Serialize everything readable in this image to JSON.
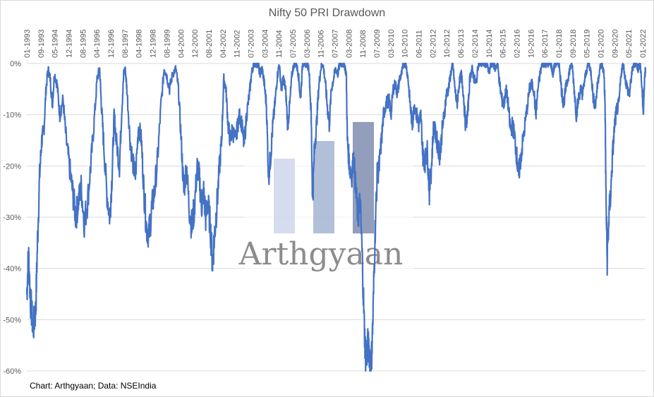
{
  "chart_data": {
    "type": "area",
    "title": "Nifty 50 PRI Drawdown",
    "source_note": "Chart: Arthgyaan; Data: NSEIndia",
    "watermark": "Arthgyaan",
    "ylim": [
      -0.6,
      0
    ],
    "y_ticks": [
      "0%",
      "-10%",
      "-20%",
      "-30%",
      "-40%",
      "-50%",
      "-60%"
    ],
    "x_tick_labels": [
      "01-1993",
      "09-1993",
      "05-1994",
      "12-1994",
      "08-1995",
      "04-1996",
      "12-1996",
      "08-1997",
      "04-1998",
      "12-1998",
      "08-1999",
      "04-2000",
      "12-2000",
      "08-2001",
      "04-2002",
      "11-2002",
      "07-2003",
      "03-2004",
      "11-2004",
      "07-2005",
      "03-2006",
      "11-2006",
      "07-2007",
      "03-2008",
      "11-2008",
      "07-2009",
      "03-2010",
      "10-2010",
      "06-2011",
      "02-2012",
      "10-2012",
      "06-2013",
      "02-2014",
      "10-2014",
      "06-2015",
      "02-2016",
      "10-2016",
      "06-2017",
      "01-2018",
      "09-2018",
      "05-2019",
      "01-2020",
      "09-2020",
      "05-2021",
      "01-2022"
    ],
    "colors": {
      "line": "#4472c4",
      "grid": "#d9d9d9",
      "text": "#595959"
    },
    "series": [
      {
        "values": [
          [
            1993.0,
            -0.45
          ],
          [
            1993.08,
            -0.37
          ],
          [
            1993.17,
            -0.46
          ],
          [
            1993.3,
            -0.52
          ],
          [
            1993.42,
            -0.48
          ],
          [
            1993.5,
            -0.35
          ],
          [
            1993.6,
            -0.22
          ],
          [
            1993.7,
            -0.15
          ],
          [
            1993.8,
            -0.13
          ],
          [
            1993.9,
            -0.05
          ],
          [
            1994.0,
            -0.01
          ],
          [
            1994.1,
            -0.03
          ],
          [
            1994.2,
            -0.08
          ],
          [
            1994.3,
            -0.02
          ],
          [
            1994.42,
            -0.04
          ],
          [
            1994.55,
            -0.1
          ],
          [
            1994.7,
            -0.07
          ],
          [
            1994.85,
            -0.15
          ],
          [
            1995.0,
            -0.2
          ],
          [
            1995.15,
            -0.25
          ],
          [
            1995.3,
            -0.3
          ],
          [
            1995.42,
            -0.27
          ],
          [
            1995.55,
            -0.24
          ],
          [
            1995.7,
            -0.31
          ],
          [
            1995.85,
            -0.27
          ],
          [
            1996.0,
            -0.2
          ],
          [
            1996.15,
            -0.12
          ],
          [
            1996.3,
            -0.03
          ],
          [
            1996.42,
            -0.01
          ],
          [
            1996.5,
            -0.08
          ],
          [
            1996.6,
            -0.15
          ],
          [
            1996.75,
            -0.25
          ],
          [
            1996.9,
            -0.3
          ],
          [
            1997.0,
            -0.22
          ],
          [
            1997.1,
            -0.1
          ],
          [
            1997.2,
            -0.15
          ],
          [
            1997.35,
            -0.2
          ],
          [
            1997.45,
            -0.1
          ],
          [
            1997.55,
            -0.02
          ],
          [
            1997.62,
            -0.01
          ],
          [
            1997.7,
            -0.05
          ],
          [
            1997.85,
            -0.15
          ],
          [
            1998.0,
            -0.2
          ],
          [
            1998.1,
            -0.22
          ],
          [
            1998.25,
            -0.12
          ],
          [
            1998.38,
            -0.15
          ],
          [
            1998.5,
            -0.25
          ],
          [
            1998.62,
            -0.32
          ],
          [
            1998.75,
            -0.33
          ],
          [
            1998.87,
            -0.28
          ],
          [
            1999.0,
            -0.25
          ],
          [
            1999.15,
            -0.18
          ],
          [
            1999.3,
            -0.08
          ],
          [
            1999.45,
            -0.01
          ],
          [
            1999.55,
            -0.02
          ],
          [
            1999.7,
            -0.05
          ],
          [
            1999.85,
            -0.02
          ],
          [
            2000.0,
            -0.01
          ],
          [
            2000.12,
            -0.05
          ],
          [
            2000.25,
            -0.15
          ],
          [
            2000.37,
            -0.25
          ],
          [
            2000.5,
            -0.2
          ],
          [
            2000.62,
            -0.28
          ],
          [
            2000.75,
            -0.32
          ],
          [
            2000.87,
            -0.28
          ],
          [
            2001.0,
            -0.2
          ],
          [
            2001.1,
            -0.22
          ],
          [
            2001.2,
            -0.28
          ],
          [
            2001.3,
            -0.25
          ],
          [
            2001.4,
            -0.3
          ],
          [
            2001.5,
            -0.27
          ],
          [
            2001.62,
            -0.32
          ],
          [
            2001.72,
            -0.39
          ],
          [
            2001.82,
            -0.33
          ],
          [
            2001.92,
            -0.28
          ],
          [
            2002.05,
            -0.2
          ],
          [
            2002.15,
            -0.15
          ],
          [
            2002.25,
            -0.03
          ],
          [
            2002.35,
            -0.05
          ],
          [
            2002.45,
            -0.12
          ],
          [
            2002.55,
            -0.15
          ],
          [
            2002.65,
            -0.13
          ],
          [
            2002.8,
            -0.15
          ],
          [
            2002.9,
            -0.12
          ],
          [
            2003.0,
            -0.1
          ],
          [
            2003.1,
            -0.12
          ],
          [
            2003.2,
            -0.16
          ],
          [
            2003.32,
            -0.1
          ],
          [
            2003.45,
            -0.06
          ],
          [
            2003.55,
            -0.02
          ],
          [
            2003.65,
            0.0
          ],
          [
            2003.75,
            0.0
          ],
          [
            2003.85,
            0.0
          ],
          [
            2003.95,
            -0.02
          ],
          [
            2004.05,
            -0.01
          ],
          [
            2004.15,
            -0.04
          ],
          [
            2004.25,
            -0.08
          ],
          [
            2004.35,
            -0.22
          ],
          [
            2004.45,
            -0.18
          ],
          [
            2004.55,
            -0.12
          ],
          [
            2004.65,
            -0.08
          ],
          [
            2004.75,
            -0.03
          ],
          [
            2004.85,
            0.0
          ],
          [
            2004.95,
            -0.05
          ],
          [
            2005.05,
            -0.03
          ],
          [
            2005.15,
            -0.05
          ],
          [
            2005.25,
            -0.12
          ],
          [
            2005.35,
            -0.08
          ],
          [
            2005.45,
            -0.02
          ],
          [
            2005.55,
            0.0
          ],
          [
            2005.65,
            0.0
          ],
          [
            2005.75,
            -0.02
          ],
          [
            2005.85,
            -0.07
          ],
          [
            2005.95,
            0.0
          ],
          [
            2006.05,
            0.0
          ],
          [
            2006.15,
            0.0
          ],
          [
            2006.25,
            -0.01
          ],
          [
            2006.35,
            -0.1
          ],
          [
            2006.42,
            -0.27
          ],
          [
            2006.5,
            -0.17
          ],
          [
            2006.6,
            -0.12
          ],
          [
            2006.7,
            -0.05
          ],
          [
            2006.8,
            -0.01
          ],
          [
            2006.9,
            0.0
          ],
          [
            2007.0,
            -0.03
          ],
          [
            2007.1,
            -0.08
          ],
          [
            2007.2,
            -0.12
          ],
          [
            2007.3,
            -0.05
          ],
          [
            2007.4,
            -0.03
          ],
          [
            2007.5,
            -0.01
          ],
          [
            2007.6,
            -0.02
          ],
          [
            2007.7,
            0.0
          ],
          [
            2007.8,
            0.0
          ],
          [
            2007.9,
            0.0
          ],
          [
            2008.0,
            -0.02
          ],
          [
            2008.05,
            -0.15
          ],
          [
            2008.15,
            -0.2
          ],
          [
            2008.25,
            -0.22
          ],
          [
            2008.35,
            -0.18
          ],
          [
            2008.45,
            -0.25
          ],
          [
            2008.55,
            -0.3
          ],
          [
            2008.65,
            -0.27
          ],
          [
            2008.75,
            -0.38
          ],
          [
            2008.85,
            -0.52
          ],
          [
            2008.92,
            -0.58
          ],
          [
            2009.0,
            -0.55
          ],
          [
            2009.08,
            -0.56
          ],
          [
            2009.17,
            -0.59
          ],
          [
            2009.25,
            -0.5
          ],
          [
            2009.35,
            -0.33
          ],
          [
            2009.45,
            -0.22
          ],
          [
            2009.55,
            -0.2
          ],
          [
            2009.65,
            -0.15
          ],
          [
            2009.75,
            -0.1
          ],
          [
            2009.85,
            -0.08
          ],
          [
            2010.0,
            -0.07
          ],
          [
            2010.1,
            -0.1
          ],
          [
            2010.2,
            -0.05
          ],
          [
            2010.3,
            -0.04
          ],
          [
            2010.4,
            -0.06
          ],
          [
            2010.5,
            -0.03
          ],
          [
            2010.6,
            -0.02
          ],
          [
            2010.7,
            0.0
          ],
          [
            2010.8,
            0.0
          ],
          [
            2010.9,
            -0.03
          ],
          [
            2011.0,
            -0.08
          ],
          [
            2011.1,
            -0.12
          ],
          [
            2011.2,
            -0.08
          ],
          [
            2011.3,
            -0.1
          ],
          [
            2011.4,
            -0.12
          ],
          [
            2011.5,
            -0.1
          ],
          [
            2011.6,
            -0.18
          ],
          [
            2011.7,
            -0.19
          ],
          [
            2011.8,
            -0.17
          ],
          [
            2011.9,
            -0.25
          ],
          [
            2012.0,
            -0.2
          ],
          [
            2012.1,
            -0.12
          ],
          [
            2012.2,
            -0.14
          ],
          [
            2012.3,
            -0.16
          ],
          [
            2012.4,
            -0.18
          ],
          [
            2012.5,
            -0.13
          ],
          [
            2012.6,
            -0.1
          ],
          [
            2012.7,
            -0.06
          ],
          [
            2012.8,
            -0.05
          ],
          [
            2012.9,
            -0.02
          ],
          [
            2013.0,
            0.0
          ],
          [
            2013.1,
            -0.05
          ],
          [
            2013.2,
            -0.08
          ],
          [
            2013.3,
            -0.04
          ],
          [
            2013.4,
            -0.02
          ],
          [
            2013.5,
            -0.06
          ],
          [
            2013.6,
            -0.12
          ],
          [
            2013.7,
            -0.1
          ],
          [
            2013.8,
            -0.03
          ],
          [
            2013.9,
            -0.01
          ],
          [
            2014.0,
            -0.03
          ],
          [
            2014.1,
            -0.04
          ],
          [
            2014.2,
            0.0
          ],
          [
            2014.3,
            0.0
          ],
          [
            2014.4,
            0.0
          ],
          [
            2014.5,
            0.0
          ],
          [
            2014.6,
            0.0
          ],
          [
            2014.7,
            -0.02
          ],
          [
            2014.8,
            0.0
          ],
          [
            2014.9,
            0.0
          ],
          [
            2015.0,
            -0.01
          ],
          [
            2015.1,
            0.0
          ],
          [
            2015.2,
            -0.04
          ],
          [
            2015.3,
            -0.07
          ],
          [
            2015.4,
            -0.08
          ],
          [
            2015.5,
            -0.05
          ],
          [
            2015.6,
            -0.08
          ],
          [
            2015.7,
            -0.13
          ],
          [
            2015.8,
            -0.12
          ],
          [
            2015.9,
            -0.14
          ],
          [
            2016.0,
            -0.18
          ],
          [
            2016.08,
            -0.22
          ],
          [
            2016.17,
            -0.19
          ],
          [
            2016.3,
            -0.15
          ],
          [
            2016.45,
            -0.1
          ],
          [
            2016.6,
            -0.05
          ],
          [
            2016.7,
            -0.04
          ],
          [
            2016.8,
            -0.05
          ],
          [
            2016.9,
            -0.1
          ],
          [
            2017.0,
            -0.05
          ],
          [
            2017.1,
            -0.02
          ],
          [
            2017.2,
            0.0
          ],
          [
            2017.3,
            0.0
          ],
          [
            2017.4,
            0.0
          ],
          [
            2017.5,
            0.0
          ],
          [
            2017.6,
            0.0
          ],
          [
            2017.7,
            -0.02
          ],
          [
            2017.8,
            0.0
          ],
          [
            2017.9,
            0.0
          ],
          [
            2018.0,
            0.0
          ],
          [
            2018.1,
            -0.05
          ],
          [
            2018.2,
            -0.08
          ],
          [
            2018.3,
            -0.05
          ],
          [
            2018.4,
            -0.03
          ],
          [
            2018.5,
            -0.01
          ],
          [
            2018.6,
            0.0
          ],
          [
            2018.7,
            -0.05
          ],
          [
            2018.8,
            -0.1
          ],
          [
            2018.9,
            -0.07
          ],
          [
            2019.0,
            -0.05
          ],
          [
            2019.1,
            -0.06
          ],
          [
            2019.2,
            -0.03
          ],
          [
            2019.3,
            -0.01
          ],
          [
            2019.4,
            0.0
          ],
          [
            2019.5,
            -0.02
          ],
          [
            2019.6,
            -0.07
          ],
          [
            2019.7,
            -0.08
          ],
          [
            2019.8,
            -0.04
          ],
          [
            2019.9,
            -0.01
          ],
          [
            2020.0,
            0.0
          ],
          [
            2020.1,
            -0.02
          ],
          [
            2020.15,
            -0.08
          ],
          [
            2020.2,
            -0.28
          ],
          [
            2020.25,
            -0.38
          ],
          [
            2020.33,
            -0.3
          ],
          [
            2020.42,
            -0.25
          ],
          [
            2020.5,
            -0.18
          ],
          [
            2020.6,
            -0.12
          ],
          [
            2020.7,
            -0.09
          ],
          [
            2020.8,
            -0.08
          ],
          [
            2020.9,
            -0.02
          ],
          [
            2021.0,
            0.0
          ],
          [
            2021.1,
            -0.03
          ],
          [
            2021.2,
            -0.05
          ],
          [
            2021.3,
            -0.06
          ],
          [
            2021.4,
            -0.02
          ],
          [
            2021.5,
            0.0
          ],
          [
            2021.6,
            0.0
          ],
          [
            2021.7,
            -0.01
          ],
          [
            2021.8,
            0.0
          ],
          [
            2021.9,
            -0.06
          ],
          [
            2021.95,
            -0.1
          ],
          [
            2022.0,
            -0.03
          ],
          [
            2022.05,
            -0.01
          ]
        ]
      }
    ]
  }
}
